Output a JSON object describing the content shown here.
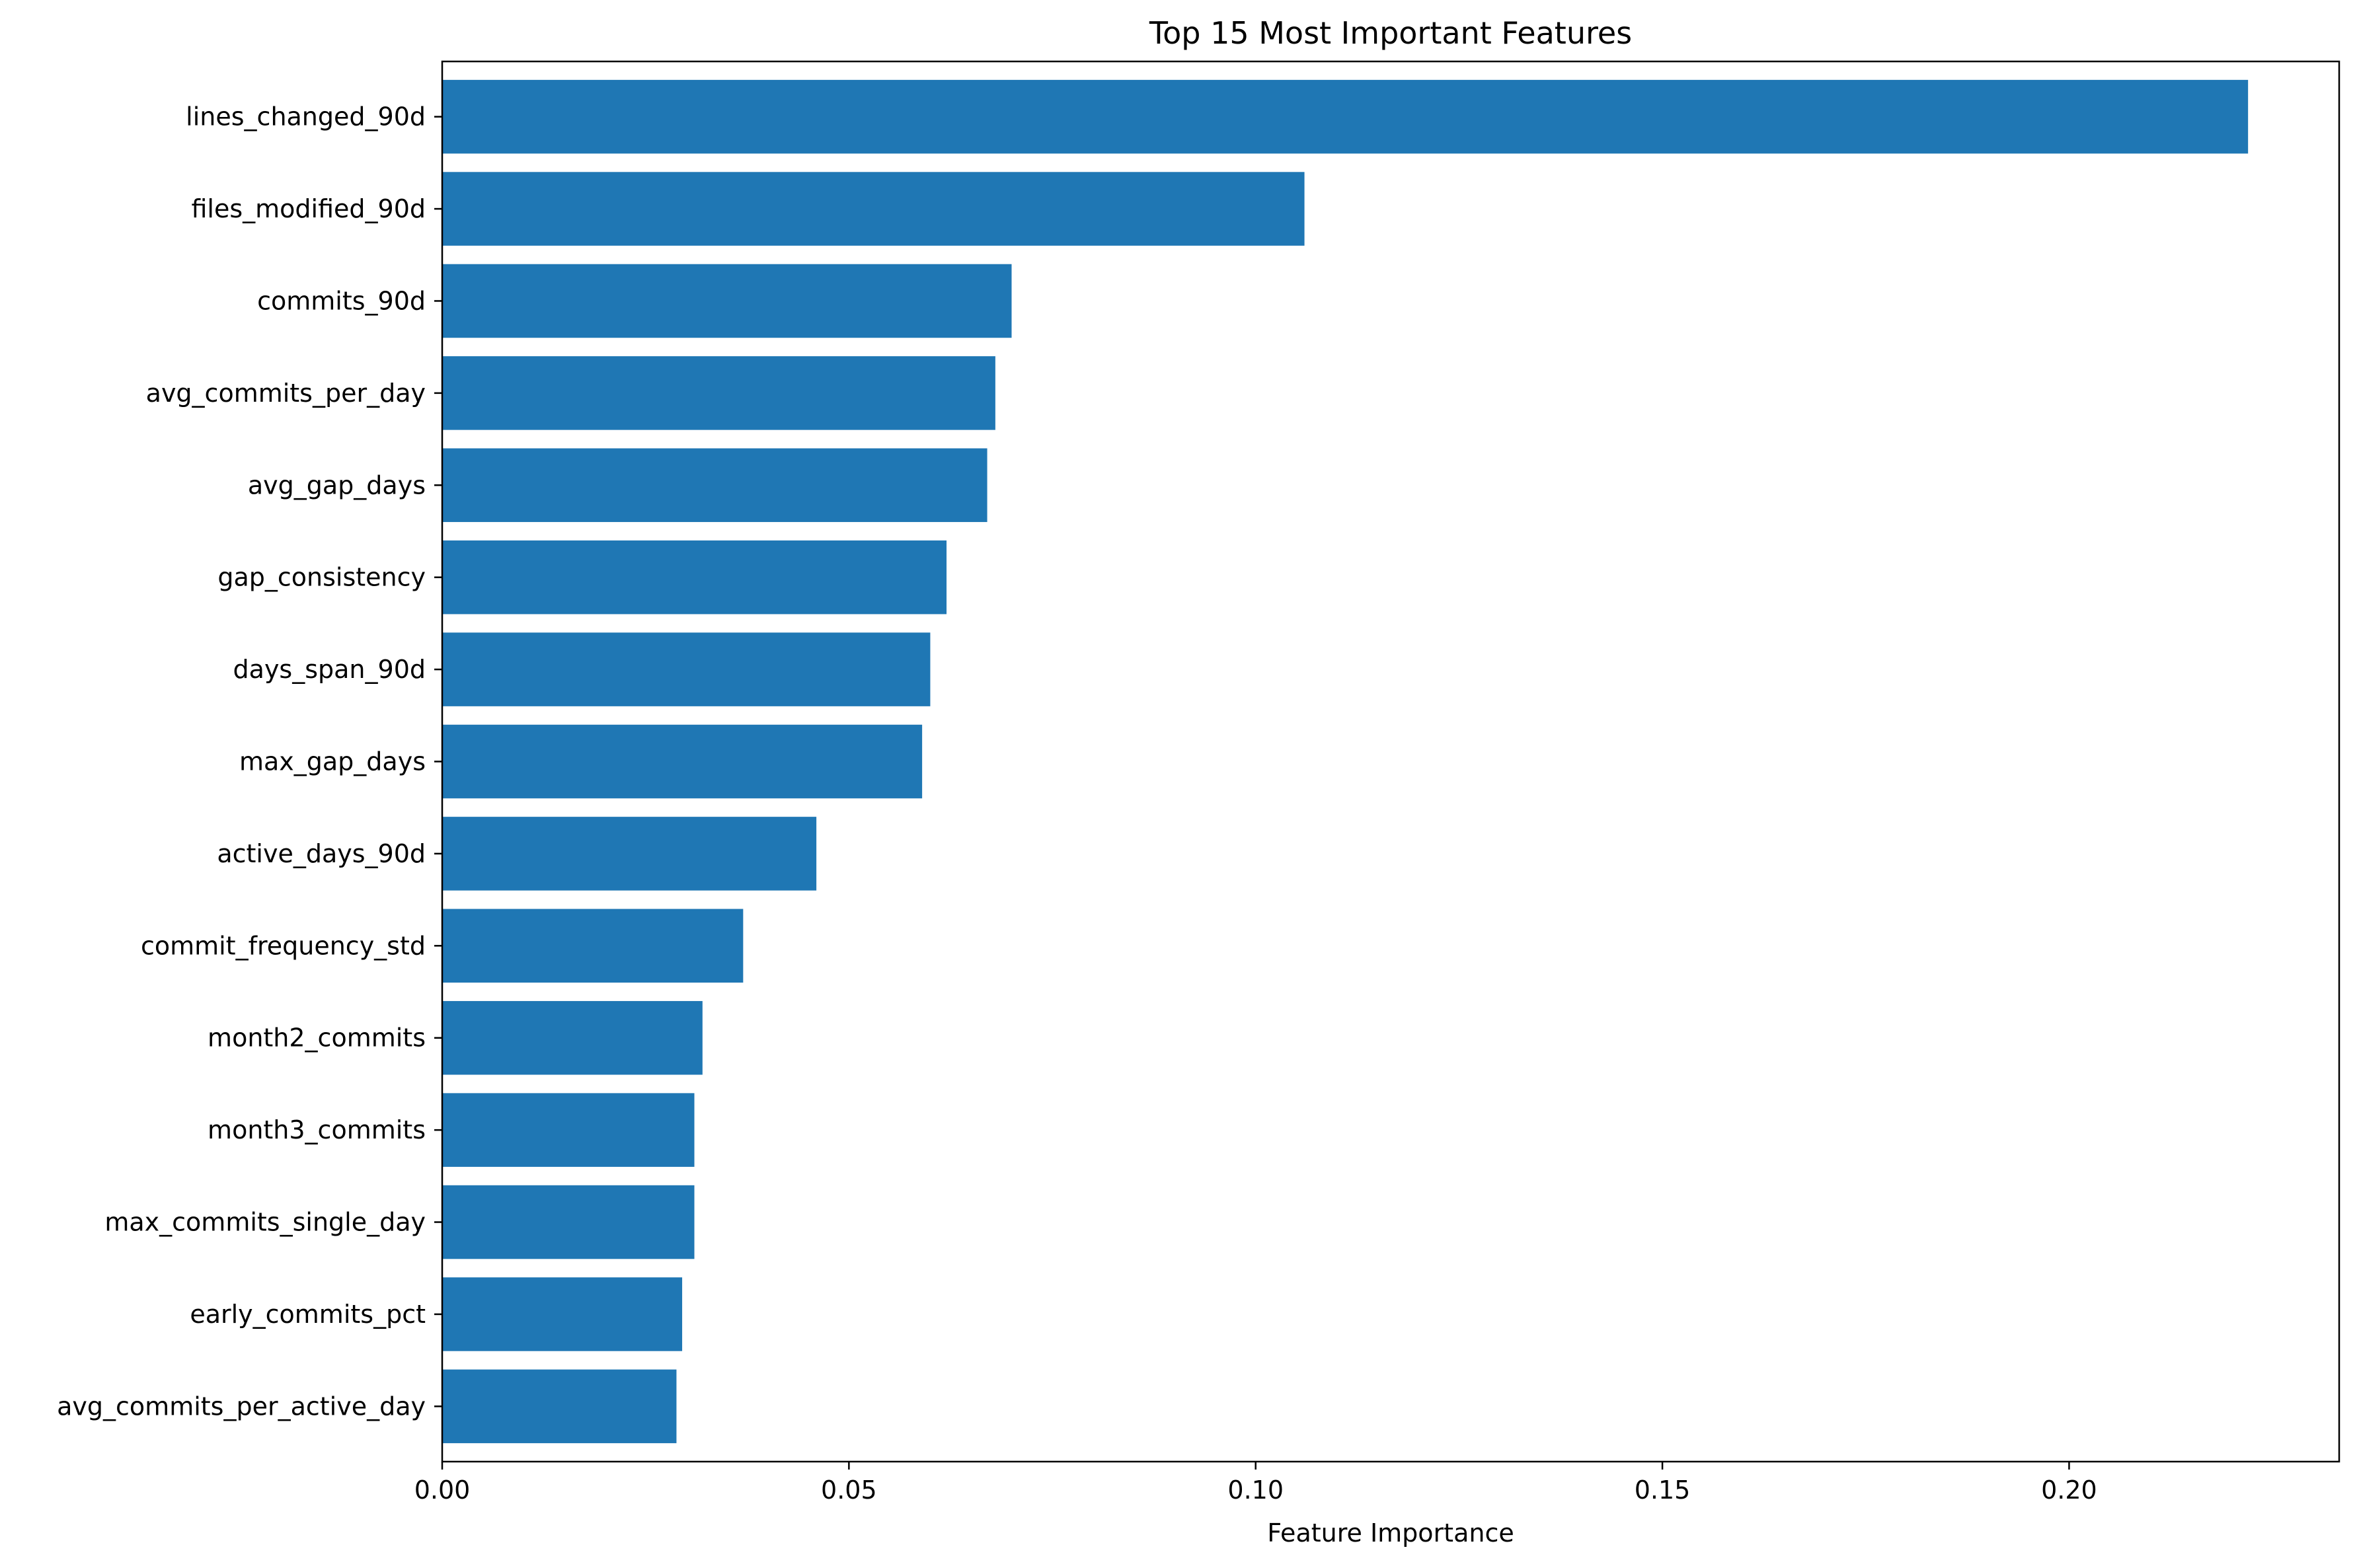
{
  "chart_data": {
    "type": "bar",
    "orientation": "horizontal",
    "title": "Top 15 Most Important Features",
    "xlabel": "Feature Importance",
    "ylabel": "",
    "xlim": [
      0,
      0.2332
    ],
    "xticks": [
      0.0,
      0.05,
      0.1,
      0.15,
      0.2
    ],
    "xtick_labels": [
      "0.00",
      "0.05",
      "0.10",
      "0.15",
      "0.20"
    ],
    "grid": false,
    "legend": "none",
    "bar_color": "#1f77b4",
    "categories": [
      "lines_changed_90d",
      "files_modified_90d",
      "commits_90d",
      "avg_commits_per_day",
      "avg_gap_days",
      "gap_consistency",
      "days_span_90d",
      "max_gap_days",
      "active_days_90d",
      "commit_frequency_std",
      "month2_commits",
      "month3_commits",
      "max_commits_single_day",
      "early_commits_pct",
      "avg_commits_per_active_day"
    ],
    "values": [
      0.222,
      0.106,
      0.07,
      0.068,
      0.067,
      0.062,
      0.06,
      0.059,
      0.046,
      0.037,
      0.032,
      0.031,
      0.031,
      0.0295,
      0.0288
    ]
  }
}
